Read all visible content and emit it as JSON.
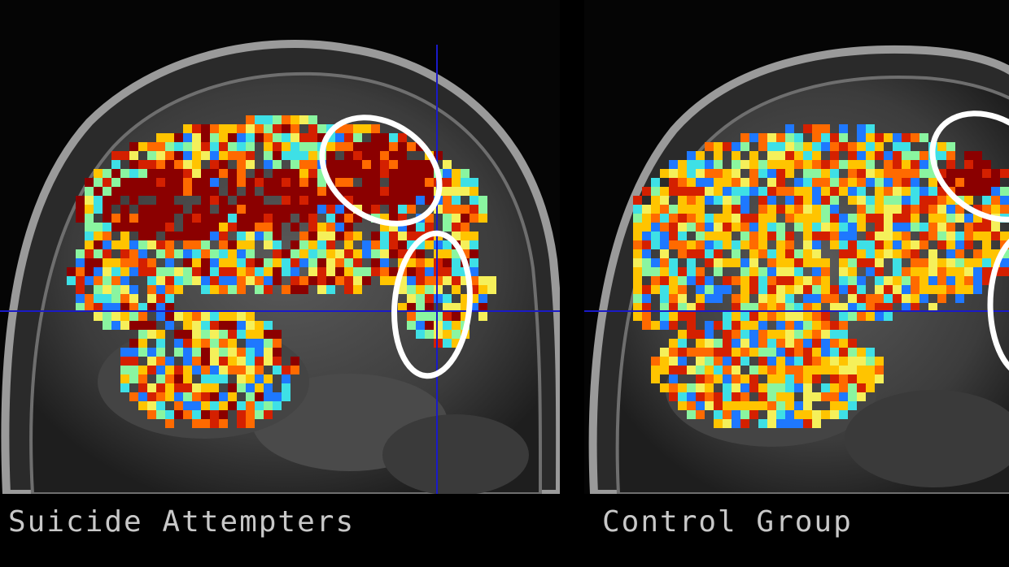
{
  "panels": [
    {
      "caption": "Suicide Attempters",
      "group": "suicide-attempters",
      "activation_bias": "warm",
      "highlighted_regions": 2
    },
    {
      "caption": "Control Group",
      "group": "control-group",
      "activation_bias": "cool",
      "highlighted_regions": 2
    }
  ],
  "colors": {
    "background": "#000000",
    "caption_text": "#c8c8c8",
    "crosshair": "#1a1ac8",
    "circle_outline": "#ffffff",
    "colormap": [
      "#8b0000",
      "#d42000",
      "#ff6a00",
      "#ffc400",
      "#f5f05a",
      "#8af5a0",
      "#3ee0e6",
      "#1e78ff"
    ]
  }
}
